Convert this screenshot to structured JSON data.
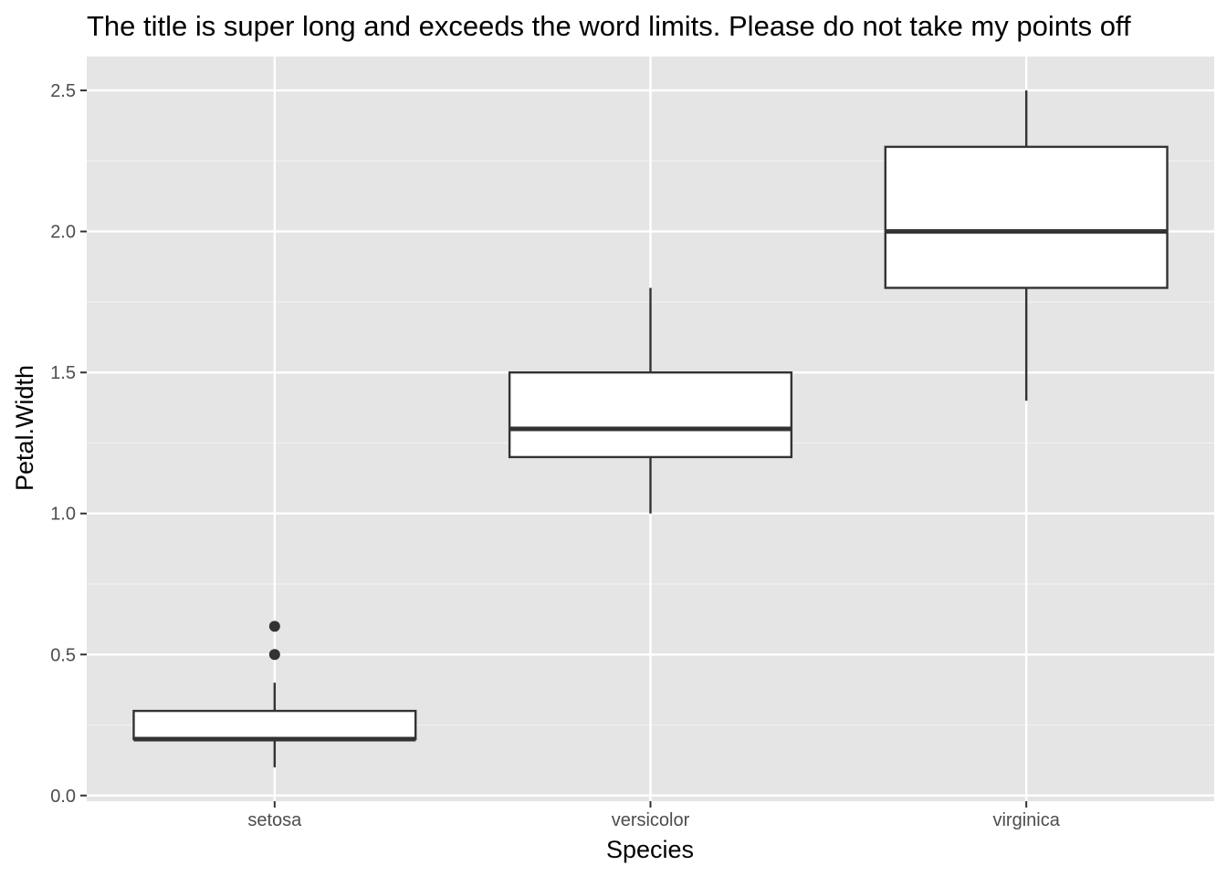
{
  "chart_data": {
    "type": "boxplot",
    "title": "The title is super long and exceeds the word limits. Please do not take my points off",
    "xlabel": "Species",
    "ylabel": "Petal.Width",
    "categories": [
      "setosa",
      "versicolor",
      "virginica"
    ],
    "boxes": [
      {
        "category": "setosa",
        "whisker_low": 0.1,
        "q1": 0.2,
        "median": 0.2,
        "q3": 0.3,
        "whisker_high": 0.4,
        "outliers": [
          0.5,
          0.6
        ]
      },
      {
        "category": "versicolor",
        "whisker_low": 1.0,
        "q1": 1.2,
        "median": 1.3,
        "q3": 1.5,
        "whisker_high": 1.8,
        "outliers": []
      },
      {
        "category": "virginica",
        "whisker_low": 1.4,
        "q1": 1.8,
        "median": 2.0,
        "q3": 2.3,
        "whisker_high": 2.5,
        "outliers": []
      }
    ],
    "y_ticks": [
      0.0,
      0.5,
      1.0,
      1.5,
      2.0,
      2.5
    ],
    "y_tick_labels": [
      "0.0",
      "0.5",
      "1.0",
      "1.5",
      "2.0",
      "2.5"
    ],
    "ylim": [
      -0.02,
      2.62
    ],
    "grid": true,
    "colors": {
      "panel_background": "#e5e5e5",
      "grid_major": "#ffffff",
      "grid_minor": "#f2f2f2",
      "box_fill": "#ffffff",
      "box_stroke": "#333333",
      "tick_mark": "#333333"
    }
  }
}
